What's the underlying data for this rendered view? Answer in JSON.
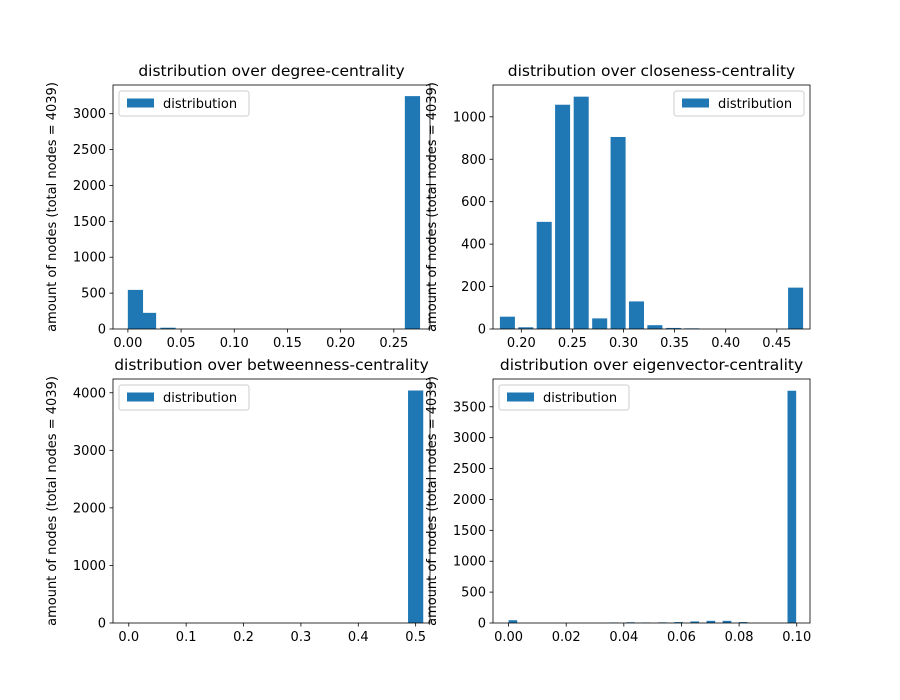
{
  "chart_data": [
    {
      "type": "bar",
      "title": "distribution over degree-centrality",
      "ylabel": "amount of nodes (total nodes = 4039)",
      "xlabel": "",
      "legend": {
        "label": "distribution",
        "placement": "upper-left"
      },
      "xlim": [
        -0.014,
        0.284
      ],
      "ylim": [
        0,
        3400
      ],
      "xticks": [
        0.0,
        0.05,
        0.1,
        0.15,
        0.2,
        0.25
      ],
      "xtick_labels": [
        "0.00",
        "0.05",
        "0.10",
        "0.15",
        "0.20",
        "0.25"
      ],
      "yticks": [
        0,
        500,
        1000,
        1500,
        2000,
        2500,
        3000
      ],
      "ytick_labels": [
        "0",
        "500",
        "1000",
        "1500",
        "2000",
        "2500",
        "3000"
      ],
      "bar_width": 0.0143,
      "x": [
        0.0071,
        0.0194,
        0.0377,
        0.2675
      ],
      "values": [
        545,
        225,
        18,
        3245
      ],
      "color": "#1f77b4"
    },
    {
      "type": "bar",
      "title": "distribution over closeness-centrality",
      "ylabel": "amount of nodes (total nodes = 4039)",
      "xlabel": "",
      "legend": {
        "label": "distribution",
        "placement": "upper-right"
      },
      "xlim": [
        0.1723,
        0.4825
      ],
      "ylim": [
        0,
        1150
      ],
      "xticks": [
        0.2,
        0.25,
        0.3,
        0.35,
        0.4,
        0.45
      ],
      "xtick_labels": [
        "0.20",
        "0.25",
        "0.30",
        "0.35",
        "0.40",
        "0.45"
      ],
      "yticks": [
        0,
        200,
        400,
        600,
        800,
        1000
      ],
      "ytick_labels": [
        "0",
        "200",
        "400",
        "600",
        "800",
        "1000"
      ],
      "bar_width": 0.0147,
      "x": [
        0.1864,
        0.2044,
        0.2224,
        0.2404,
        0.2586,
        0.2767,
        0.2947,
        0.3127,
        0.3307,
        0.3489,
        0.3669,
        0.3849,
        0.4029,
        0.4209,
        0.4391,
        0.4684
      ],
      "values": [
        58,
        8,
        505,
        1057,
        1095,
        50,
        905,
        130,
        18,
        5,
        3,
        0,
        0,
        0,
        0,
        195
      ],
      "color": "#1f77b4"
    },
    {
      "type": "bar",
      "title": "distribution over betweenness-centrality",
      "ylabel": "amount of nodes (total nodes = 4039)",
      "xlabel": "",
      "legend": {
        "label": "distribution",
        "placement": "upper-left"
      },
      "xlim": [
        -0.0275,
        0.525
      ],
      "ylim": [
        0,
        4239
      ],
      "xticks": [
        0.0,
        0.1,
        0.2,
        0.3,
        0.4,
        0.5
      ],
      "xtick_labels": [
        "0.0",
        "0.1",
        "0.2",
        "0.3",
        "0.4",
        "0.5"
      ],
      "yticks": [
        0,
        1000,
        2000,
        3000,
        4000
      ],
      "ytick_labels": [
        "0",
        "1000",
        "2000",
        "3000",
        "4000"
      ],
      "bar_width": 0.0265,
      "x": [
        0.5
      ],
      "values": [
        4039
      ],
      "color": "#1f77b4"
    },
    {
      "type": "bar",
      "title": "distribution over eigenvector-centrality",
      "ylabel": "amount of nodes (total nodes = 4039)",
      "xlabel": "",
      "legend": {
        "label": "distribution",
        "placement": "upper-left"
      },
      "xlim": [
        -0.0054,
        0.1046
      ],
      "ylim": [
        0,
        3950
      ],
      "xticks": [
        0.0,
        0.02,
        0.04,
        0.06,
        0.08,
        0.1
      ],
      "xtick_labels": [
        "0.00",
        "0.02",
        "0.04",
        "0.06",
        "0.08",
        "0.10"
      ],
      "yticks": [
        0,
        500,
        1000,
        1500,
        2000,
        2500,
        3000,
        3500
      ],
      "ytick_labels": [
        "0",
        "500",
        "1000",
        "1500",
        "2000",
        "2500",
        "3000",
        "3500"
      ],
      "bar_width": 0.003,
      "x": [
        0.0015,
        0.0367,
        0.0423,
        0.0478,
        0.0534,
        0.059,
        0.0646,
        0.0702,
        0.0758,
        0.0814,
        0.0983
      ],
      "values": [
        45,
        8,
        12,
        8,
        10,
        15,
        25,
        35,
        35,
        15,
        3760
      ],
      "color": "#1f77b4"
    }
  ]
}
